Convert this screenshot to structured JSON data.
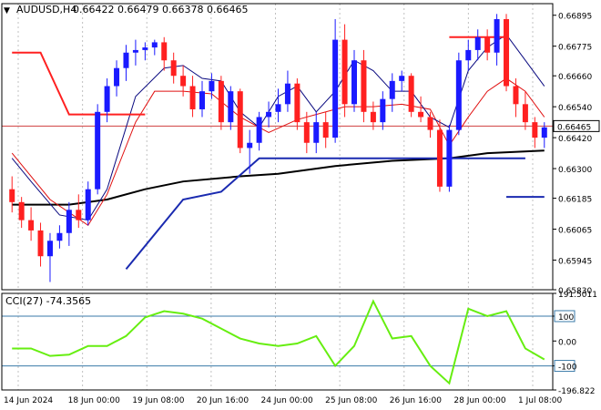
{
  "header": {
    "arrow": "▼",
    "symbol": "AUDUSD,H4",
    "ohlc": "0.66422 0.66479 0.66378 0.66465"
  },
  "colors": {
    "background": "#ffffff",
    "frame": "#000000",
    "grid": "#c0c0c0",
    "bull": "#1a1aff",
    "bear": "#ff2020",
    "ma_slow": "#000000",
    "ma_fast": "#e01010",
    "ma_mid": "#0a0a80",
    "channel": "#1a2ab0",
    "price_line": "#d04040",
    "cci": "#66ee10",
    "cci_level": "#3a7aa8"
  },
  "chart_data": [
    {
      "type": "candlestick",
      "title": "AUDUSD,H4",
      "ylim": [
        0.6583,
        0.6694
      ],
      "y_ticks": [
        "0.66895",
        "0.66775",
        "0.66660",
        "0.66540",
        "0.66420",
        "0.66300",
        "0.66185",
        "0.66065",
        "0.65945",
        "0.65830"
      ],
      "x_ticks": [
        "14 Jun 2024",
        "18 Jun 00:00",
        "19 Jun 08:00",
        "20 Jun 16:00",
        "24 Jun 00:00",
        "25 Jun 08:00",
        "26 Jun 16:00",
        "28 Jun 00:00",
        "1 Jul 08:00"
      ],
      "current_price_label": "0.66465",
      "current_price": 0.66465,
      "candles": [
        [
          0.6622,
          0.6627,
          0.6613,
          0.6617
        ],
        [
          0.6617,
          0.6619,
          0.6607,
          0.661
        ],
        [
          0.661,
          0.6615,
          0.6602,
          0.6606
        ],
        [
          0.6606,
          0.6609,
          0.6592,
          0.6596
        ],
        [
          0.6596,
          0.6605,
          0.6586,
          0.6602
        ],
        [
          0.6602,
          0.6608,
          0.6599,
          0.6605
        ],
        [
          0.6605,
          0.6617,
          0.66,
          0.6614
        ],
        [
          0.6614,
          0.662,
          0.6607,
          0.661
        ],
        [
          0.661,
          0.6625,
          0.6608,
          0.6622
        ],
        [
          0.6622,
          0.6655,
          0.662,
          0.6652
        ],
        [
          0.6652,
          0.6665,
          0.6648,
          0.6662
        ],
        [
          0.6662,
          0.6672,
          0.6658,
          0.6669
        ],
        [
          0.6669,
          0.6678,
          0.6664,
          0.6675
        ],
        [
          0.6675,
          0.668,
          0.667,
          0.6676
        ],
        [
          0.6676,
          0.6679,
          0.6672,
          0.6677
        ],
        [
          0.6677,
          0.668,
          0.6674,
          0.6679
        ],
        [
          0.6679,
          0.6681,
          0.6668,
          0.6672
        ],
        [
          0.6672,
          0.6675,
          0.6663,
          0.6666
        ],
        [
          0.6666,
          0.667,
          0.6658,
          0.6662
        ],
        [
          0.6662,
          0.6666,
          0.665,
          0.6653
        ],
        [
          0.6653,
          0.6664,
          0.665,
          0.666
        ],
        [
          0.666,
          0.6667,
          0.6657,
          0.6664
        ],
        [
          0.6664,
          0.6666,
          0.6645,
          0.6648
        ],
        [
          0.6648,
          0.6662,
          0.6645,
          0.666
        ],
        [
          0.666,
          0.6661,
          0.6636,
          0.6638
        ],
        [
          0.6638,
          0.6645,
          0.6628,
          0.664
        ],
        [
          0.664,
          0.6652,
          0.6637,
          0.665
        ],
        [
          0.665,
          0.6656,
          0.6646,
          0.6652
        ],
        [
          0.6652,
          0.6661,
          0.6648,
          0.6655
        ],
        [
          0.6655,
          0.6668,
          0.6652,
          0.6663
        ],
        [
          0.6663,
          0.6665,
          0.6645,
          0.6648
        ],
        [
          0.6648,
          0.6652,
          0.6636,
          0.664
        ],
        [
          0.664,
          0.6652,
          0.6636,
          0.6648
        ],
        [
          0.6648,
          0.6652,
          0.6638,
          0.6642
        ],
        [
          0.6642,
          0.6688,
          0.664,
          0.668
        ],
        [
          0.668,
          0.6686,
          0.665,
          0.6655
        ],
        [
          0.6655,
          0.6676,
          0.6652,
          0.6672
        ],
        [
          0.6672,
          0.6676,
          0.6648,
          0.6652
        ],
        [
          0.6652,
          0.6656,
          0.6645,
          0.6648
        ],
        [
          0.6648,
          0.666,
          0.6645,
          0.6657
        ],
        [
          0.6657,
          0.6667,
          0.6652,
          0.6664
        ],
        [
          0.6664,
          0.6668,
          0.666,
          0.6666
        ],
        [
          0.6666,
          0.6667,
          0.665,
          0.6652
        ],
        [
          0.6652,
          0.6658,
          0.6648,
          0.665
        ],
        [
          0.665,
          0.6652,
          0.6642,
          0.6645
        ],
        [
          0.6645,
          0.6649,
          0.6621,
          0.6623
        ],
        [
          0.6623,
          0.6647,
          0.6621,
          0.6645
        ],
        [
          0.6645,
          0.6675,
          0.6643,
          0.6672
        ],
        [
          0.6672,
          0.668,
          0.6668,
          0.6676
        ],
        [
          0.6676,
          0.6684,
          0.6672,
          0.6681
        ],
        [
          0.6681,
          0.6684,
          0.6672,
          0.6675
        ],
        [
          0.6675,
          0.669,
          0.667,
          0.6688
        ],
        [
          0.6688,
          0.669,
          0.666,
          0.6662
        ],
        [
          0.6662,
          0.6665,
          0.665,
          0.6655
        ],
        [
          0.6655,
          0.666,
          0.6645,
          0.6648
        ],
        [
          0.6648,
          0.665,
          0.6638,
          0.6642
        ],
        [
          0.6642,
          0.6648,
          0.6638,
          0.6646
        ]
      ],
      "lines": [
        {
          "name": "MA200",
          "color": "ma_slow",
          "points": [
            [
              0,
              0.6616
            ],
            [
              6,
              0.6616
            ],
            [
              10,
              0.6618
            ],
            [
              14,
              0.6622
            ],
            [
              18,
              0.6625
            ],
            [
              24,
              0.6627
            ],
            [
              28,
              0.6628
            ],
            [
              34,
              0.6631
            ],
            [
              40,
              0.6633
            ],
            [
              46,
              0.6634
            ],
            [
              50,
              0.6636
            ],
            [
              56,
              0.6637
            ]
          ]
        },
        {
          "name": "MA20",
          "color": "ma_fast",
          "points": [
            [
              0,
              0.6636
            ],
            [
              4,
              0.6618
            ],
            [
              8,
              0.6608
            ],
            [
              10,
              0.662
            ],
            [
              13,
              0.6648
            ],
            [
              15,
              0.666
            ],
            [
              18,
              0.666
            ],
            [
              21,
              0.6659
            ],
            [
              24,
              0.665
            ],
            [
              27,
              0.6644
            ],
            [
              30,
              0.6649
            ],
            [
              32,
              0.6651
            ],
            [
              35,
              0.6654
            ],
            [
              38,
              0.6654
            ],
            [
              41,
              0.6655
            ],
            [
              44,
              0.6653
            ],
            [
              46,
              0.6639
            ],
            [
              48,
              0.665
            ],
            [
              50,
              0.666
            ],
            [
              52,
              0.6665
            ],
            [
              54,
              0.666
            ],
            [
              56,
              0.665
            ]
          ]
        },
        {
          "name": "MA10",
          "color": "ma_mid",
          "points": [
            [
              0,
              0.6634
            ],
            [
              2,
              0.6625
            ],
            [
              5,
              0.6612
            ],
            [
              8,
              0.661
            ],
            [
              10,
              0.6622
            ],
            [
              13,
              0.6658
            ],
            [
              16,
              0.6669
            ],
            [
              18,
              0.667
            ],
            [
              20,
              0.6665
            ],
            [
              22,
              0.6664
            ],
            [
              24,
              0.6652
            ],
            [
              26,
              0.6646
            ],
            [
              28,
              0.6658
            ],
            [
              30,
              0.6662
            ],
            [
              32,
              0.6652
            ],
            [
              34,
              0.666
            ],
            [
              36,
              0.6672
            ],
            [
              38,
              0.6668
            ],
            [
              40,
              0.666
            ],
            [
              42,
              0.666
            ],
            [
              44,
              0.665
            ],
            [
              46,
              0.6646
            ],
            [
              48,
              0.6668
            ],
            [
              50,
              0.6677
            ],
            [
              52,
              0.6682
            ],
            [
              54,
              0.6672
            ],
            [
              56,
              0.6662
            ]
          ]
        },
        {
          "name": "Envelope",
          "color": "channel",
          "points": [
            [
              12,
              0.6591
            ],
            [
              18,
              0.6618
            ],
            [
              22,
              0.6621
            ],
            [
              26,
              0.6634
            ],
            [
              54,
              0.6634
            ]
          ]
        },
        {
          "name": "Upper band",
          "color": "bear",
          "points": [
            [
              0,
              0.6675
            ],
            [
              3,
              0.6675
            ],
            [
              6,
              0.6651
            ],
            [
              14,
              0.6651
            ]
          ]
        },
        {
          "name": "Upper band 2",
          "color": "bear",
          "points": [
            [
              46,
              0.6681
            ],
            [
              52,
              0.6681
            ]
          ]
        },
        {
          "name": "Lower band 2",
          "color": "channel",
          "points": [
            [
              52,
              0.6619
            ],
            [
              56,
              0.6619
            ]
          ]
        }
      ]
    },
    {
      "type": "line",
      "title": "CCI(27) -74.3565",
      "ylim": [
        -196.822,
        191.5011
      ],
      "y_ticks": [
        "191.5011",
        "100",
        "0.00",
        "-100",
        "-196.822"
      ],
      "levels": [
        100,
        -100
      ],
      "x": [
        0,
        2,
        4,
        6,
        8,
        10,
        12,
        14,
        16,
        18,
        20,
        22,
        24,
        26,
        28,
        30,
        32,
        34,
        36,
        38,
        40,
        42,
        44,
        46,
        48,
        50,
        52,
        54,
        56
      ],
      "values": [
        -30,
        -30,
        -60,
        -55,
        -20,
        -20,
        20,
        95,
        120,
        110,
        90,
        50,
        10,
        -10,
        -20,
        -10,
        20,
        -100,
        -20,
        160,
        10,
        20,
        -100,
        -170,
        130,
        100,
        120,
        -30,
        -74
      ]
    }
  ]
}
